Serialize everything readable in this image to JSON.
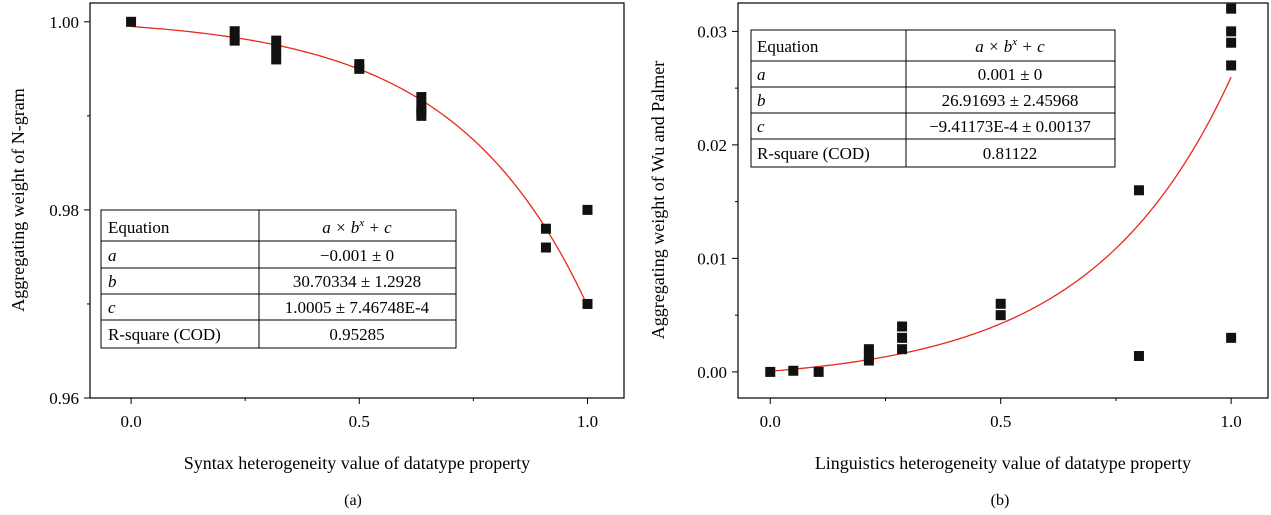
{
  "charts": [
    {
      "chart_data": {
        "type": "scatter",
        "xlabel": "Syntax heterogeneity value of datatype property",
        "ylabel": "Aggregating weight of N-gram",
        "panel_label": "(a)",
        "xlim": [
          -0.09,
          1.08
        ],
        "ylim": [
          0.96,
          1.002
        ],
        "x_ticks": [
          {
            "v": 0.0,
            "label": "0.0"
          },
          {
            "v": 0.5,
            "label": "0.5"
          },
          {
            "v": 1.0,
            "label": "1.0"
          }
        ],
        "y_ticks": [
          {
            "v": 0.96,
            "label": "0.96"
          },
          {
            "v": 0.98,
            "label": "0.98"
          },
          {
            "v": 1.0,
            "label": "1.00"
          }
        ],
        "series": [
          {
            "kind": "points",
            "x": [
              0.0,
              0.227,
              0.227,
              0.318,
              0.318,
              0.318,
              0.5,
              0.5,
              0.636,
              0.636,
              0.636,
              0.636,
              0.909,
              0.909,
              1.0,
              1.0
            ],
            "y": [
              1.0,
              0.999,
              0.998,
              0.998,
              0.997,
              0.996,
              0.9955,
              0.995,
              0.992,
              0.991,
              0.9905,
              0.99,
              0.978,
              0.976,
              0.98,
              0.97
            ]
          },
          {
            "kind": "fit",
            "model": "a*b^x+c",
            "params": {
              "a": -0.001,
              "b": 30.70334,
              "c": 1.0005
            },
            "color": "#e8291c"
          }
        ],
        "table": {
          "rows": [
            [
              "Equation",
              "a × b^x + c"
            ],
            [
              "a",
              "−0.001 ± 0"
            ],
            [
              "b",
              "30.70334 ± 1.2928"
            ],
            [
              "c",
              "1.0005 ± 7.46748E-4"
            ],
            [
              "R-square (COD)",
              "0.95285"
            ]
          ]
        }
      }
    },
    {
      "chart_data": {
        "type": "scatter",
        "xlabel": "Linguistics heterogeneity value of datatype property",
        "ylabel": "Aggregating weight of Wu and Palmer",
        "panel_label": "(b)",
        "xlim": [
          -0.07,
          1.08
        ],
        "ylim": [
          -0.0023,
          0.0325
        ],
        "x_ticks": [
          {
            "v": 0.0,
            "label": "0.0"
          },
          {
            "v": 0.5,
            "label": "0.5"
          },
          {
            "v": 1.0,
            "label": "1.0"
          }
        ],
        "y_ticks": [
          {
            "v": 0.0,
            "label": "0.00"
          },
          {
            "v": 0.01,
            "label": "0.01"
          },
          {
            "v": 0.02,
            "label": "0.02"
          },
          {
            "v": 0.03,
            "label": "0.03"
          }
        ],
        "series": [
          {
            "kind": "points",
            "x": [
              0.0,
              0.05,
              0.105,
              0.214,
              0.214,
              0.214,
              0.286,
              0.286,
              0.286,
              0.5,
              0.5,
              0.8,
              0.8,
              1.0,
              1.0,
              1.0,
              1.0,
              1.0
            ],
            "y": [
              0.0,
              0.0001,
              0.0,
              0.002,
              0.0015,
              0.001,
              0.004,
              0.003,
              0.002,
              0.006,
              0.005,
              0.016,
              0.0014,
              0.032,
              0.03,
              0.029,
              0.027,
              0.003
            ]
          },
          {
            "kind": "fit",
            "model": "a*b^x+c",
            "params": {
              "a": 0.001,
              "b": 26.91693,
              "c": -0.000941173
            },
            "color": "#e8291c"
          }
        ],
        "table": {
          "rows": [
            [
              "Equation",
              "a × b^x + c"
            ],
            [
              "a",
              "0.001 ± 0"
            ],
            [
              "b",
              "26.91693 ± 2.45968"
            ],
            [
              "c",
              "−9.41173E-4 ± 0.00137"
            ],
            [
              "R-square (COD)",
              "0.81122"
            ]
          ]
        }
      }
    }
  ]
}
